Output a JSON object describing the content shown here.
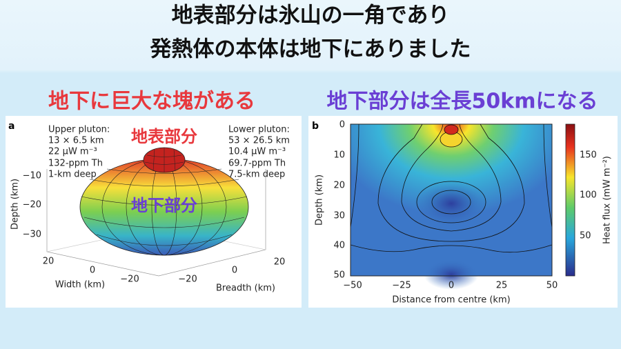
{
  "slide": {
    "title_lines": [
      "地表部分は氷山の一角であり",
      "発熱体の本体は地下にありました"
    ],
    "left_heading": "地下に巨大な塊がある",
    "right_heading": "地下部分は全長50kmになる",
    "panel_a": {
      "letter": "a",
      "upper_pluton": [
        "Upper pluton:",
        "13 × 6.5 km",
        "22 μW m⁻³",
        "132-ppm Th",
        "1-km deep"
      ],
      "lower_pluton": [
        "Lower pluton:",
        "53 × 26.5 km",
        "10.4 μW m⁻³",
        "69.7-ppm Th",
        "7.5-km deep"
      ],
      "depth_ticks": [
        "−10",
        "−20",
        "−30"
      ],
      "depth_label": "Depth (km)",
      "width_ticks": [
        "20",
        "0",
        "−20"
      ],
      "width_label": "Width (km)",
      "breadth_ticks": [
        "−20",
        "0",
        "20"
      ],
      "breadth_label": "Breadth (km)",
      "surface_label": "地表部分",
      "underground_label": "地下部分"
    },
    "panel_b": {
      "letter": "b",
      "y_ticks": [
        "0",
        "10",
        "20",
        "30",
        "40",
        "50"
      ],
      "y_label": "Depth (km)",
      "x_ticks": [
        "−50",
        "−25",
        "0",
        "25",
        "50"
      ],
      "x_label": "Distance from centre (km)",
      "colorbar_ticks": [
        "150",
        "100",
        "50"
      ],
      "colorbar_label": "Heat flux (mW m⁻²)"
    }
  }
}
